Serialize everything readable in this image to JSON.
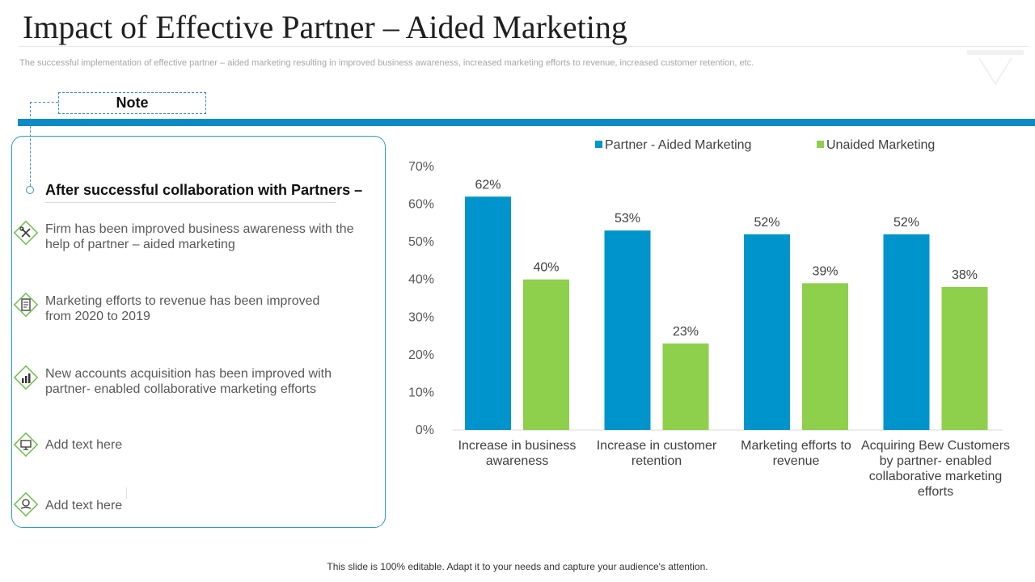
{
  "header": {
    "title": "Impact of Effective Partner – Aided Marketing",
    "subtitle": "The successful implementation of effective partner – aided marketing resulting in improved business awareness, increased marketing efforts to revenue, increased customer retention, etc."
  },
  "note": {
    "label": "Note"
  },
  "panel": {
    "heading": "After successful collaboration with Partners –",
    "items": [
      {
        "icon": "tools-icon",
        "text": "Firm has been improved business awareness with the help of partner – aided marketing"
      },
      {
        "icon": "document-icon",
        "text": "Marketing efforts to revenue has been improved from 2020 to 2019"
      },
      {
        "icon": "bar-chart-icon",
        "text": "New accounts acquisition has been improved with partner- enabled collaborative marketing efforts"
      },
      {
        "icon": "monitor-icon",
        "text": "Add text here"
      },
      {
        "icon": "hand-coin-icon",
        "text": "Add text here"
      }
    ]
  },
  "colors": {
    "accent_blue": "#0c8ac4",
    "partner_blue": "#0094cc",
    "unaided_green": "#8ecf4c",
    "icon_green": "#6fbf4a"
  },
  "chart_data": {
    "type": "bar",
    "categories": [
      "Increase in business awareness",
      "Increase in customer retention",
      "Marketing efforts to revenue",
      "Acquiring Bew Customers by partner- enabled collaborative marketing efforts"
    ],
    "series": [
      {
        "name": "Partner - Aided Marketing",
        "values": [
          62,
          53,
          52,
          52
        ],
        "labels": [
          "62%",
          "53%",
          "52%",
          "52%"
        ]
      },
      {
        "name": "Unaided Marketing",
        "values": [
          40,
          23,
          39,
          38
        ],
        "labels": [
          "40%",
          "23%",
          "39%",
          "38%"
        ]
      }
    ],
    "yticks": [
      "0%",
      "10%",
      "20%",
      "30%",
      "40%",
      "50%",
      "60%",
      "70%"
    ],
    "ylim": [
      0,
      70
    ],
    "legend_position": "top",
    "grid": false
  },
  "footer": {
    "text": "This slide is 100% editable. Adapt it to your needs and capture your audience's attention."
  }
}
